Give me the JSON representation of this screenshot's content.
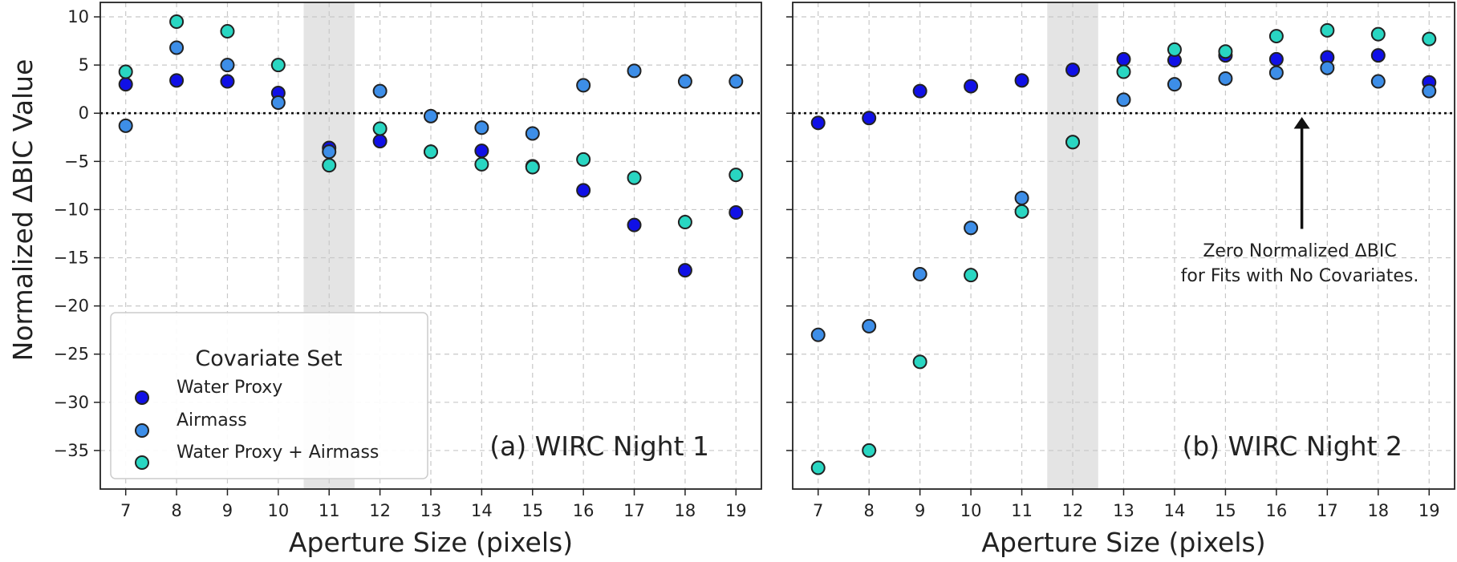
{
  "figure": {
    "ylabel": "Normalized ΔBIC Value",
    "legend_title": "Covariate Set",
    "annotation_line1": "Zero Normalized ΔBIC",
    "annotation_line2": "for Fits with No Covariates."
  },
  "colors": {
    "water_proxy": "#1010e6",
    "airmass": "#3d8ee8",
    "water_airmass": "#29d6c2",
    "marker_edge": "#222222",
    "shade": "#e4e4e4",
    "grid": "#c8c8c8"
  },
  "chart_data": [
    {
      "type": "scatter",
      "panel_label": "(a) WIRC Night 1",
      "xlabel": "Aperture Size (pixels)",
      "ylabel": "Normalized ΔBIC Value",
      "x": [
        7,
        8,
        9,
        10,
        11,
        12,
        13,
        14,
        15,
        16,
        17,
        18,
        19
      ],
      "xlim": [
        6.5,
        19.5
      ],
      "ylim": [
        -39,
        11.5
      ],
      "yticks": [
        10,
        5,
        0,
        -5,
        -10,
        -15,
        -20,
        -25,
        -30,
        -35
      ],
      "grid": true,
      "zero_line": true,
      "shaded_aperture": 11,
      "legend_position": "lower-left",
      "series": [
        {
          "name": "Water Proxy",
          "values": [
            3.0,
            3.4,
            3.3,
            2.1,
            -3.6,
            -2.9,
            -4.0,
            -3.9,
            -5.5,
            -8.0,
            -11.6,
            -16.3,
            -10.3
          ]
        },
        {
          "name": "Airmass",
          "values": [
            -1.3,
            6.8,
            5.0,
            1.1,
            -4.0,
            2.3,
            -0.3,
            -1.5,
            -2.1,
            2.9,
            4.4,
            3.3,
            3.3
          ]
        },
        {
          "name": "Water Proxy + Airmass",
          "values": [
            4.3,
            9.5,
            8.5,
            5.0,
            -5.4,
            -1.6,
            -4.0,
            -5.3,
            -5.6,
            -4.8,
            -6.7,
            -11.3,
            -6.4
          ]
        }
      ]
    },
    {
      "type": "scatter",
      "panel_label": "(b) WIRC Night 2",
      "xlabel": "Aperture Size (pixels)",
      "x": [
        7,
        8,
        9,
        10,
        11,
        12,
        13,
        14,
        15,
        16,
        17,
        18,
        19
      ],
      "xlim": [
        6.5,
        19.5
      ],
      "ylim": [
        -39,
        11.5
      ],
      "yticks": [
        10,
        5,
        0,
        -5,
        -10,
        -15,
        -20,
        -25,
        -30,
        -35
      ],
      "grid": true,
      "zero_line": true,
      "shaded_aperture": 12,
      "series": [
        {
          "name": "Water Proxy",
          "values": [
            -1.0,
            -0.5,
            2.3,
            2.8,
            3.4,
            4.5,
            5.6,
            5.5,
            6.0,
            5.6,
            5.8,
            6.0,
            3.2
          ]
        },
        {
          "name": "Airmass",
          "values": [
            -23.0,
            -22.1,
            -16.7,
            -11.9,
            -8.8,
            -3.0,
            1.4,
            3.0,
            3.6,
            4.2,
            4.7,
            3.3,
            2.3
          ]
        },
        {
          "name": "Water Proxy + Airmass",
          "values": [
            -36.8,
            -35.0,
            -25.8,
            -16.8,
            -10.2,
            -3.0,
            4.3,
            6.6,
            6.4,
            8.0,
            8.6,
            8.2,
            7.7
          ]
        }
      ]
    }
  ]
}
